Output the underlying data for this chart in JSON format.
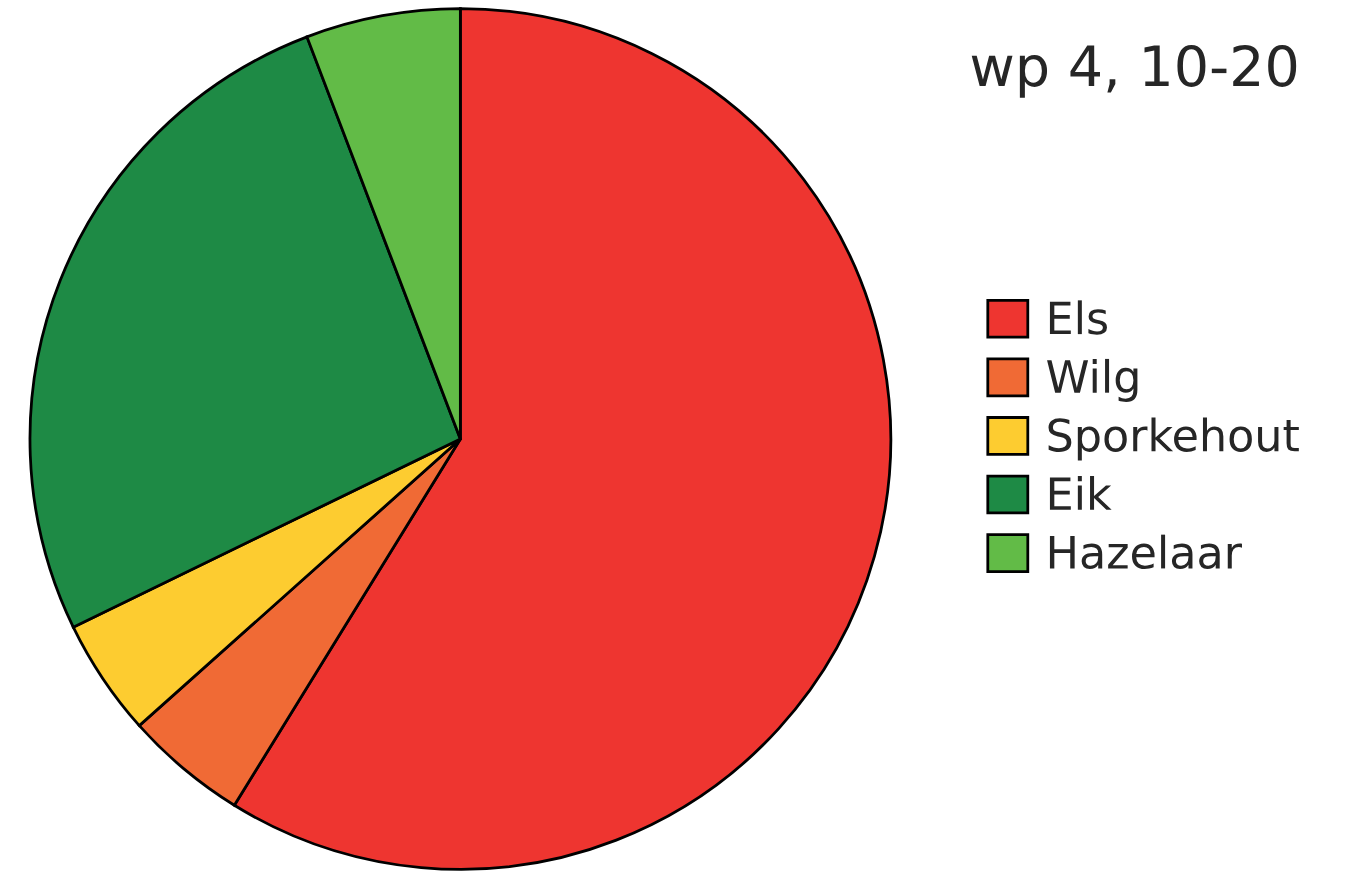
{
  "chart_data": {
    "type": "pie",
    "title": "wp 4, 10-20",
    "categories": [
      "Els",
      "Wilg",
      "Sporkehout",
      "Eik",
      "Hazelaar"
    ],
    "values": [
      58.8,
      4.6,
      4.4,
      26.4,
      5.8
    ],
    "colors": [
      "#ee3530",
      "#f06a35",
      "#fdcc30",
      "#1e8a45",
      "#62bb47"
    ],
    "legend": "right"
  }
}
